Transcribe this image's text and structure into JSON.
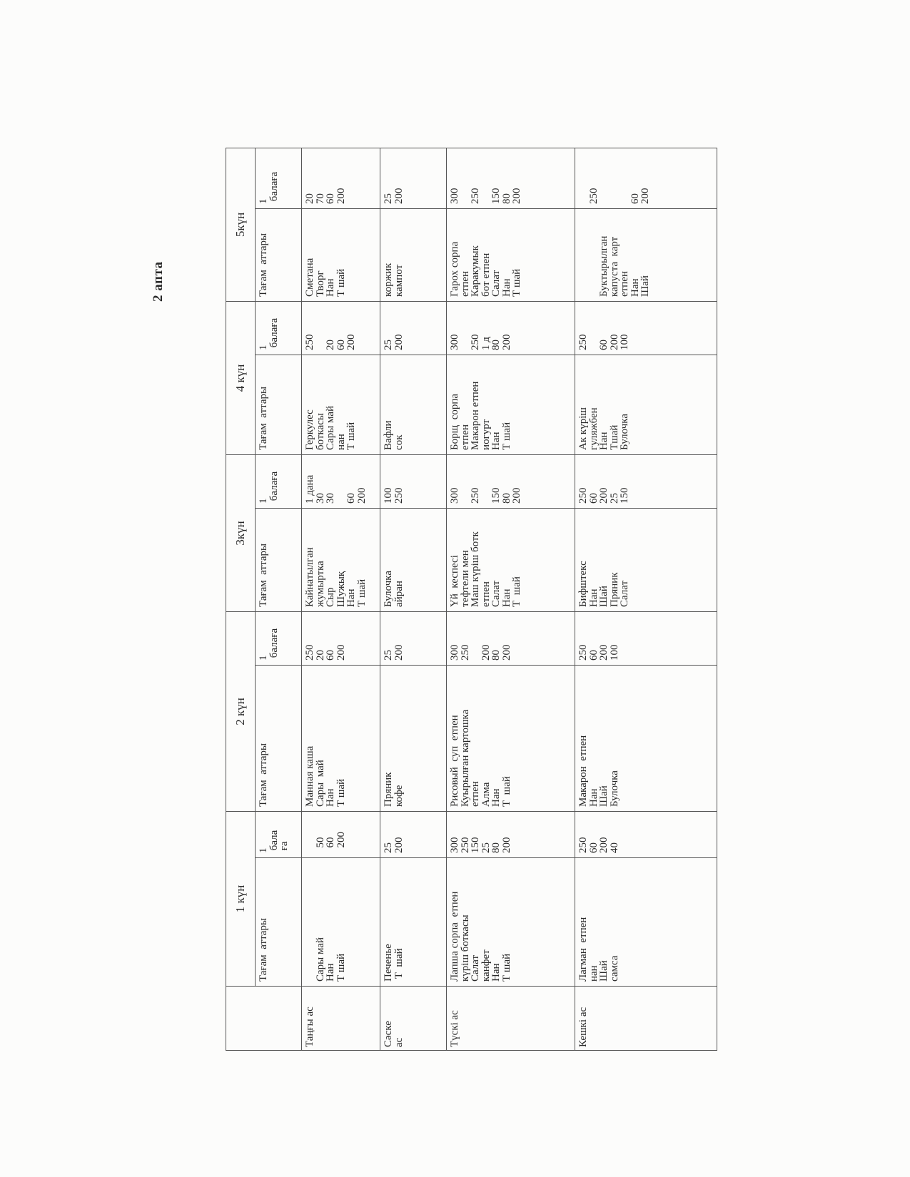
{
  "title": "2 апта",
  "days": [
    "1 күн",
    "2 күн",
    "3күн",
    "4 күн",
    "5күн"
  ],
  "col_name_header": "Тағам  аттары",
  "col_qty_headers": [
    "1\n бала\n ға",
    "1\n балаға",
    "1\n балаға",
    "1\n балаға",
    "1\n балаға"
  ],
  "meals": [
    {
      "label": "Таңғы ас",
      "cells": [
        {
          "name": "\nСары май\nНан\nТ шай",
          "qty": "\n  50\n  60\n  200"
        },
        {
          "name": "Манная каша\nСары  май\nНан\nТ шай",
          "qty": "250\n20\n60\n200"
        },
        {
          "name": "Кайнатылган\nжумыртка\nСыр\nШужық\nНан\nТ шай",
          "qty": "1 дана\n30\n30\n\n60\n200"
        },
        {
          "name": "Геркулес\nботкасы\nСары май\nнан\nТ шай",
          "qty": "250\n\n20\n60\n200"
        },
        {
          "name": "Сметана\nТворг\nНан\nТ шай",
          "qty": "20\n70\n60\n200"
        }
      ]
    },
    {
      "label": "Сәске\nас",
      "cells": [
        {
          "name": "Печенье\n Т  шай",
          "qty": "25\n200"
        },
        {
          "name": "Пряник\nкофе",
          "qty": "25\n200"
        },
        {
          "name": "Булочка\nайран",
          "qty": "100\n250"
        },
        {
          "name": "Вафли\nсок",
          "qty": "25\n200"
        },
        {
          "name": "коржик\nкампот",
          "qty": "25\n200"
        }
      ]
    },
    {
      "label": "Түскі ас",
      "cells": [
        {
          "name": "Лапша сорпа  етпен\nкүріш боткасы\nСалат\nканфет\nНан\nТ шай",
          "qty": "300\n250\n150\n25\n80\n200"
        },
        {
          "name": "Рисовый  суп  етпен\nКуырылған картошка\nетпен\nАлма\nНан\nТ  шай",
          "qty": "300\n250\n\n200\n80\n200"
        },
        {
          "name": "Үй  кеспесі\nтефтели мен\nМаш күріш ботк\nетпен\nСалат\nНан\nТ  шай",
          "qty": "300\n\n250\n\n150\n80\n200"
        },
        {
          "name": "Борщ  сорпа\nетпен\nМакарон етпен\nиогурт\nНан\nТ шай",
          "qty": "300\n\n250\n1 д\n80\n200"
        },
        {
          "name": "Гарох сорпа\nетпен\nКаракумык\nбот етпен\nСалат\nНан\nТ шай",
          "qty": "300\n\n250\n\n150\n80\n200"
        }
      ]
    },
    {
      "label": "Кешкі ас",
      "cells": [
        {
          "name": "Лагман  етпен\nнан\nШай\nсамса",
          "qty": "250\n60\n200\n40"
        },
        {
          "name": "Макарон  етпен\nНан\nШай\nБулочка",
          "qty": "250\n60\n200\n100"
        },
        {
          "name": "Бифштекс\nНан\nШай\nПряник\nСалат",
          "qty": "250\n60\n200\n25\n150"
        },
        {
          "name": "Ак күріш\nгуляжбен\nНан\nТшай\nБулочка",
          "qty": "250\n\n60\n200\n100"
        },
        {
          "name": "\n\nБуктырылган\nкапуста  карт\nетпен\nНан\nШай",
          "qty": "\n250\n\n\n\n60\n200"
        }
      ]
    }
  ]
}
